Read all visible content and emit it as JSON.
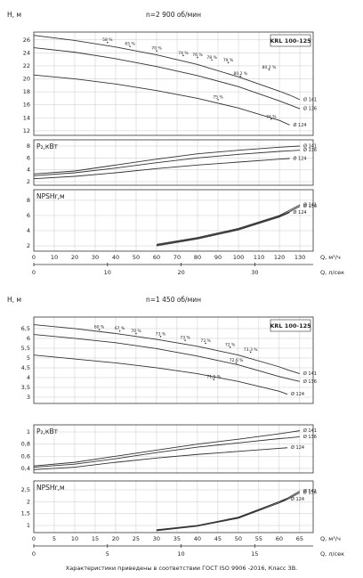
{
  "chart_data": [
    {
      "type": "line",
      "title": "n=2 900 об/мин",
      "ylabel": "H, м",
      "annotation": "KRL 100-125",
      "xlim": [
        0,
        136.5
      ],
      "ylim": [
        11.3,
        27.2
      ],
      "yticks": [
        12,
        14,
        16,
        18,
        20,
        22,
        24,
        26
      ],
      "grid": true,
      "x": [
        0,
        20,
        40,
        60,
        80,
        100,
        120,
        125,
        130
      ],
      "series": [
        {
          "name": "Ø 141",
          "color": "#333333",
          "values": [
            26.7,
            25.9,
            24.9,
            23.7,
            22.2,
            20.3,
            18.1,
            17.5,
            16.8
          ]
        },
        {
          "name": "Ø 136",
          "color": "#333333",
          "values": [
            24.8,
            24.1,
            23.1,
            21.9,
            20.5,
            18.8,
            16.6,
            16.0,
            15.4
          ]
        },
        {
          "name": "Ø 124",
          "color": "#333333",
          "values": [
            20.6,
            20.0,
            19.2,
            18.2,
            17.0,
            15.5,
            13.6,
            12.9,
            null
          ]
        }
      ],
      "efficiency": [
        {
          "label": "58 %",
          "x": 36,
          "y": 25.6
        },
        {
          "label": "65 %",
          "x": 47,
          "y": 25.0
        },
        {
          "label": "70 %",
          "x": 60,
          "y": 24.3
        },
        {
          "label": "74 %",
          "x": 73,
          "y": 23.6
        },
        {
          "label": "76 %",
          "x": 80,
          "y": 23.3
        },
        {
          "label": "78 %",
          "x": 87,
          "y": 22.9
        },
        {
          "label": "79 %",
          "x": 95,
          "y": 22.5
        },
        {
          "label": "80,2 %",
          "x": 115,
          "y": 21.4
        },
        {
          "label": "80,2 %",
          "x": 101,
          "y": 20.4
        },
        {
          "label": "75 %",
          "x": 90,
          "y": 16.8
        },
        {
          "label": "74 %",
          "x": 116,
          "y": 13.8
        }
      ]
    },
    {
      "type": "line",
      "ylabel": "P₂,кВт",
      "xlim": [
        0,
        136.5
      ],
      "ylim": [
        1.4,
        9.05
      ],
      "yticks": [
        2,
        4,
        6,
        8
      ],
      "grid": true,
      "x": [
        0,
        20,
        40,
        60,
        80,
        100,
        120,
        125,
        130
      ],
      "series": [
        {
          "name": "Ø 141",
          "color": "#333333",
          "values": [
            3.3,
            3.8,
            4.8,
            5.8,
            6.7,
            7.3,
            7.8,
            7.9,
            8.0
          ]
        },
        {
          "name": "Ø 136",
          "color": "#333333",
          "values": [
            3.0,
            3.5,
            4.3,
            5.2,
            6.0,
            6.6,
            7.1,
            7.2,
            7.3
          ]
        },
        {
          "name": "Ø 124",
          "color": "#333333",
          "values": [
            2.5,
            2.9,
            3.5,
            4.2,
            4.8,
            5.3,
            5.8,
            5.9,
            null
          ]
        }
      ]
    },
    {
      "type": "line",
      "ylabel": "NPSHr,м",
      "xlim": [
        0,
        136.5
      ],
      "ylim": [
        1.3,
        9.4
      ],
      "yticks": [
        2,
        4,
        6,
        8
      ],
      "grid": true,
      "xticks": [
        0,
        10,
        20,
        30,
        40,
        50,
        60,
        70,
        80,
        90,
        100,
        110,
        120,
        130
      ],
      "xlabel": "Q, м³/ч",
      "x2lim": [
        0,
        37.92
      ],
      "x2ticks": [
        0,
        10,
        20,
        30
      ],
      "x2label": "Q, л/сек",
      "x": [
        0,
        20,
        40,
        60,
        80,
        100,
        120,
        125,
        130
      ],
      "series": [
        {
          "name": "Ø 141",
          "color": "#333333",
          "values": [
            null,
            null,
            null,
            2.2,
            3.1,
            4.3,
            6.0,
            6.7,
            7.4
          ]
        },
        {
          "name": "Ø 136",
          "color": "#333333",
          "values": [
            null,
            null,
            null,
            2.1,
            3.0,
            4.2,
            5.9,
            6.5,
            7.2
          ]
        },
        {
          "name": "Ø 124",
          "color": "#333333",
          "values": [
            null,
            null,
            null,
            2.0,
            2.9,
            4.1,
            5.8,
            6.4,
            null
          ]
        }
      ]
    },
    {
      "type": "line",
      "title": "n=1 450 об/мин",
      "ylabel": "H, м",
      "annotation": "KRL 100-125",
      "xlim": [
        0,
        68.3
      ],
      "ylim": [
        2.68,
        7.09
      ],
      "yticks": [
        3,
        {
          "value": 3.5,
          "label": "3,5"
        },
        4,
        {
          "value": 4.5,
          "label": "4,5"
        },
        5,
        {
          "value": 5.5,
          "label": "5,5"
        },
        6,
        {
          "value": 6.5,
          "label": "6,5"
        }
      ],
      "grid": true,
      "x": [
        0,
        10,
        20,
        30,
        40,
        50,
        60,
        62,
        65
      ],
      "series": [
        {
          "name": "Ø 141",
          "color": "#333333",
          "values": [
            6.7,
            6.5,
            6.25,
            5.95,
            5.6,
            5.15,
            4.55,
            4.4,
            4.2
          ]
        },
        {
          "name": "Ø 136",
          "color": "#333333",
          "values": [
            6.2,
            6.0,
            5.78,
            5.48,
            5.1,
            4.65,
            4.05,
            3.95,
            3.8
          ]
        },
        {
          "name": "Ø 124",
          "color": "#333333",
          "values": [
            5.15,
            4.95,
            4.75,
            4.5,
            4.2,
            3.8,
            3.3,
            3.15,
            null
          ]
        }
      ],
      "efficiency": [
        {
          "label": "60 %",
          "x": 16,
          "y": 6.45
        },
        {
          "label": "67 %",
          "x": 21,
          "y": 6.38
        },
        {
          "label": "70 %",
          "x": 25,
          "y": 6.25
        },
        {
          "label": "73 %",
          "x": 31,
          "y": 6.1
        },
        {
          "label": "73 %",
          "x": 37,
          "y": 5.9
        },
        {
          "label": "73 %",
          "x": 42,
          "y": 5.75
        },
        {
          "label": "72 %",
          "x": 48,
          "y": 5.55
        },
        {
          "label": "73,3 %",
          "x": 53,
          "y": 5.3
        },
        {
          "label": "72,6 %",
          "x": 49.5,
          "y": 4.75
        },
        {
          "label": "71,5 %",
          "x": 44,
          "y": 3.9
        }
      ]
    },
    {
      "type": "line",
      "ylabel": "P₂,кВт",
      "xlim": [
        0,
        68.3
      ],
      "ylim": [
        0.326,
        1.117
      ],
      "yticks": [
        {
          "value": 0.4,
          "label": "0,4"
        },
        {
          "value": 0.6,
          "label": "0,6"
        },
        {
          "value": 0.8,
          "label": "0,8"
        },
        1
      ],
      "grid": true,
      "x": [
        0,
        10,
        20,
        30,
        40,
        50,
        60,
        62,
        65
      ],
      "series": [
        {
          "name": "Ø 141",
          "color": "#333333",
          "values": [
            0.44,
            0.5,
            0.6,
            0.7,
            0.8,
            0.88,
            0.97,
            0.99,
            1.02
          ]
        },
        {
          "name": "Ø 136",
          "color": "#333333",
          "values": [
            0.42,
            0.47,
            0.56,
            0.66,
            0.75,
            0.82,
            0.89,
            0.9,
            0.92
          ]
        },
        {
          "name": "Ø 124",
          "color": "#333333",
          "values": [
            0.38,
            0.42,
            0.5,
            0.57,
            0.63,
            0.68,
            0.73,
            0.74,
            null
          ]
        }
      ]
    },
    {
      "type": "line",
      "ylabel": "NPSHr,м",
      "xlim": [
        0,
        68.3
      ],
      "ylim": [
        0.7,
        2.875
      ],
      "yticks": [
        1,
        {
          "value": 1.5,
          "label": "1,5"
        },
        2,
        {
          "value": 2.5,
          "label": "2,5"
        }
      ],
      "grid": true,
      "xticks": [
        0,
        5,
        10,
        15,
        20,
        25,
        30,
        35,
        40,
        45,
        50,
        55,
        60,
        65
      ],
      "xlabel": "Q, м³/ч",
      "x2lim": [
        0,
        18.97
      ],
      "x2ticks": [
        0,
        5,
        10,
        15
      ],
      "x2label": "Q, л/сек",
      "x": [
        0,
        10,
        20,
        30,
        40,
        50,
        60,
        62,
        65
      ],
      "series": [
        {
          "name": "Ø 141",
          "color": "#333333",
          "values": [
            null,
            null,
            null,
            0.82,
            1.0,
            1.35,
            2.0,
            2.15,
            2.45
          ]
        },
        {
          "name": "Ø 136",
          "color": "#333333",
          "values": [
            null,
            null,
            null,
            0.8,
            0.98,
            1.3,
            1.95,
            2.1,
            2.38
          ]
        },
        {
          "name": "Ø 124",
          "color": "#333333",
          "values": [
            null,
            null,
            null,
            0.78,
            0.97,
            1.32,
            2.0,
            2.1,
            null
          ]
        }
      ]
    }
  ],
  "footer": "Характеристики приведены в соответствии  ГОСТ ISO 9906 -2016, Класс 3B."
}
